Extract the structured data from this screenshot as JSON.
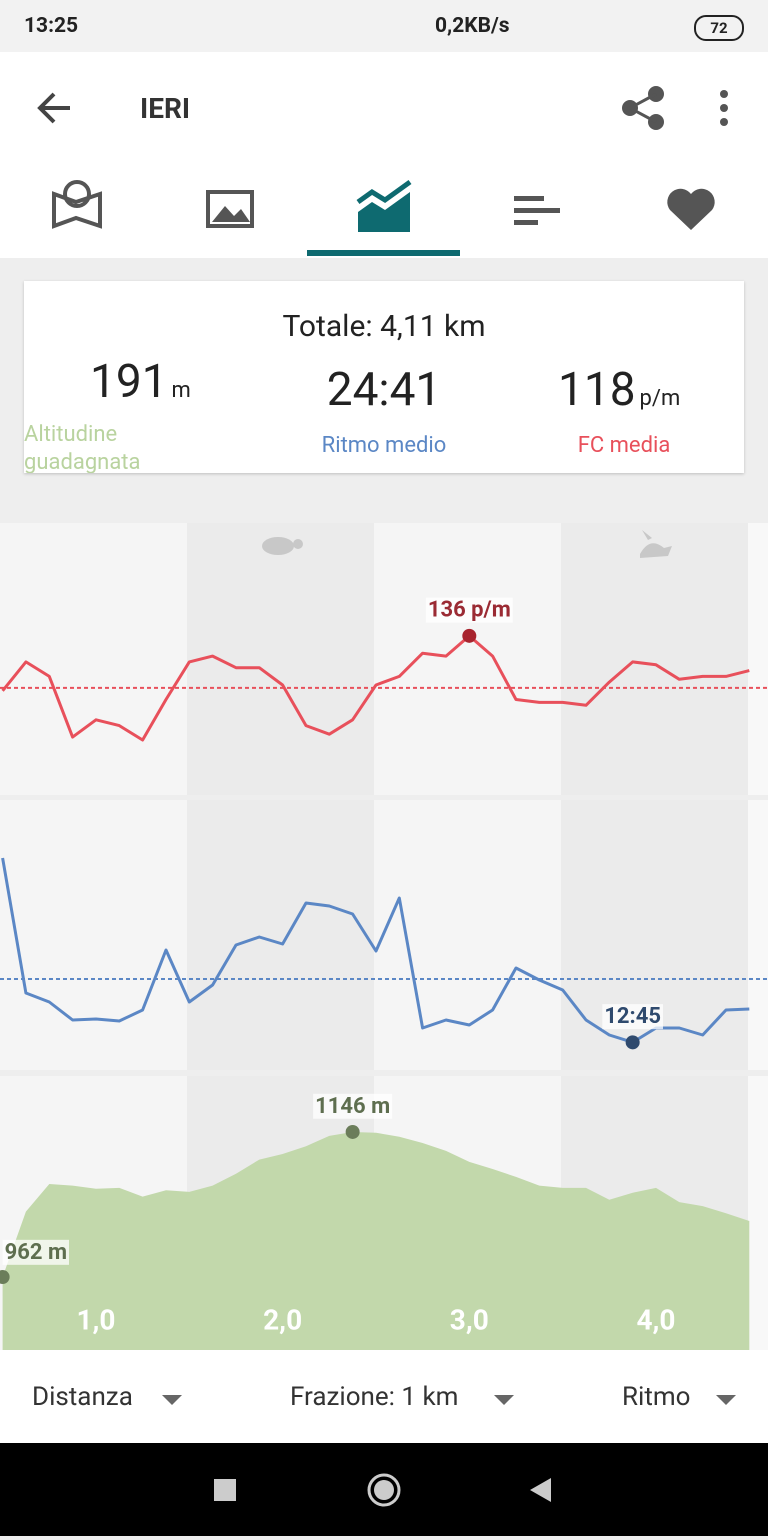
{
  "status_bar": {
    "time": "13:25",
    "network": "0,2KB/s",
    "battery": "72"
  },
  "app_bar": {
    "title": "IERI"
  },
  "summary": {
    "total": "Totale: 4,11 km",
    "altitude": {
      "value": 191,
      "unit": "m",
      "label": "Altitudine guadagnata"
    },
    "pace": {
      "value": 24.683,
      "value_label": "24:41",
      "label": "Ritmo medio"
    },
    "hr": {
      "value": 118,
      "unit": "p/m",
      "label": "FC media"
    }
  },
  "chart_data": [
    {
      "type": "line",
      "color": "#e8505b",
      "marker_color": "#a8242e",
      "label_color": "#9b2b34",
      "xlim": [
        0.486,
        4.6
      ],
      "ylim": [
        81,
        175
      ],
      "x": [
        0.5,
        0.625,
        0.75,
        0.875,
        1,
        1.125,
        1.25,
        1.375,
        1.5,
        1.625,
        1.75,
        1.875,
        2,
        2.125,
        2.25,
        2.375,
        2.5,
        2.625,
        2.75,
        2.875,
        3,
        3.125,
        3.25,
        3.375,
        3.5,
        3.625,
        3.75,
        3.875,
        4,
        4.125,
        4.25,
        4.375,
        4.5
      ],
      "values": [
        117,
        127,
        122,
        101,
        107,
        105,
        100,
        114,
        127,
        129,
        125,
        125,
        119,
        105,
        102,
        107,
        119,
        122,
        130,
        129,
        136,
        129,
        114,
        113,
        113,
        112,
        120,
        127,
        126,
        121,
        122,
        122,
        124
      ],
      "annotations": [
        {
          "value": 136,
          "label": "136 p/m"
        }
      ]
    },
    {
      "type": "line",
      "color": "#5b87c5",
      "marker_color": "#2f4a6e",
      "label_color": "#2f4a6e",
      "xlim": [
        0.486,
        4.6
      ],
      "ylim": [
        7.54,
        58.4
      ],
      "x": [
        0.5,
        0.625,
        0.75,
        0.875,
        1,
        1.125,
        1.25,
        1.375,
        1.5,
        1.625,
        1.75,
        1.875,
        2,
        2.125,
        2.25,
        2.375,
        2.5,
        2.625,
        2.75,
        2.875,
        3,
        3.125,
        3.25,
        3.375,
        3.5,
        3.625,
        3.75,
        3.875,
        4,
        4.125,
        4.25,
        4.375,
        4.5
      ],
      "values": [
        47.48,
        22.05,
        20.35,
        16.96,
        17.15,
        16.77,
        18.84,
        30.15,
        20.35,
        23.55,
        31.09,
        32.6,
        31.28,
        39.0,
        38.44,
        36.93,
        29.96,
        39.94,
        15.45,
        16.96,
        16.02,
        18.84,
        26.76,
        24.49,
        22.61,
        16.96,
        14.13,
        12.75,
        15.45,
        15.45,
        14.13,
        18.84,
        19.03
      ],
      "annotations": [
        {
          "value": 12.75,
          "label": "12:45"
        }
      ]
    },
    {
      "type": "area",
      "color": "#c2d8ab",
      "marker_color": "#6b7d5a",
      "label_color": "#5e6e4f",
      "xlim": [
        0.486,
        4.6
      ],
      "ylim": [
        869.4,
        1217
      ],
      "xticks": [
        {
          "value": 1,
          "label": "1,0"
        },
        {
          "value": 2,
          "label": "2,0"
        },
        {
          "value": 3,
          "label": "3,0"
        },
        {
          "value": 4,
          "label": "4,0"
        }
      ],
      "x": [
        0.5,
        0.625,
        0.75,
        0.875,
        1,
        1.125,
        1.25,
        1.375,
        1.5,
        1.625,
        1.75,
        1.875,
        2,
        2.125,
        2.25,
        2.375,
        2.5,
        2.625,
        2.75,
        2.875,
        3,
        3.125,
        3.25,
        3.375,
        3.5,
        3.625,
        3.75,
        3.875,
        4,
        4.125,
        4.25,
        4.375,
        4.5
      ],
      "values": [
        962,
        1045,
        1080,
        1078,
        1074,
        1075,
        1064,
        1072,
        1070,
        1078,
        1093,
        1111,
        1118,
        1128,
        1141,
        1146,
        1145,
        1140,
        1132,
        1122,
        1108,
        1099,
        1089,
        1078,
        1075,
        1075,
        1060,
        1069,
        1075,
        1057,
        1052,
        1043,
        1033
      ],
      "annotations": [
        {
          "value": 1146,
          "label": "1146 m"
        },
        {
          "value": 962,
          "label": "962 m"
        }
      ]
    }
  ],
  "controls": {
    "x_axis": "Distanza",
    "split": "Frazione: 1 km",
    "metric": "Ritmo"
  }
}
